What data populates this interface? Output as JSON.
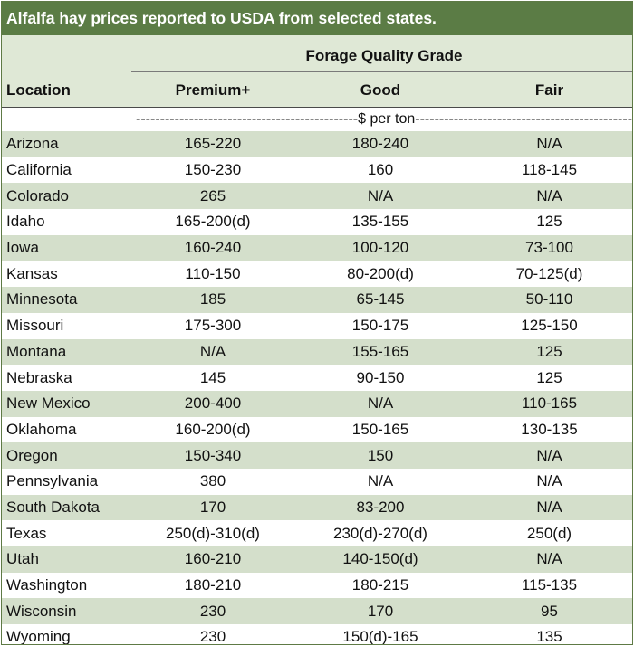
{
  "title": "Alfalfa hay prices reported to USDA from selected states.",
  "header": {
    "group": "Forage Quality Grade",
    "location": "Location",
    "premium": "Premium+",
    "good": "Good",
    "fair": "Fair"
  },
  "unit_row": "----------------------------------------------$ per ton----------------------------------------------",
  "rows": [
    {
      "location": "Arizona",
      "premium": "165-220",
      "good": "180-240",
      "fair": "N/A"
    },
    {
      "location": "California",
      "premium": "150-230",
      "good": "160",
      "fair": "118-145"
    },
    {
      "location": "Colorado",
      "premium": "265",
      "good": "N/A",
      "fair": "N/A"
    },
    {
      "location": "Idaho",
      "premium": "165-200(d)",
      "good": "135-155",
      "fair": "125"
    },
    {
      "location": "Iowa",
      "premium": "160-240",
      "good": "100-120",
      "fair": "73-100"
    },
    {
      "location": "Kansas",
      "premium": "110-150",
      "good": "80-200(d)",
      "fair": "70-125(d)"
    },
    {
      "location": "Minnesota",
      "premium": "185",
      "good": "65-145",
      "fair": "50-110"
    },
    {
      "location": "Missouri",
      "premium": "175-300",
      "good": "150-175",
      "fair": "125-150"
    },
    {
      "location": "Montana",
      "premium": "N/A",
      "good": "155-165",
      "fair": "125"
    },
    {
      "location": "Nebraska",
      "premium": "145",
      "good": "90-150",
      "fair": "125"
    },
    {
      "location": "New Mexico",
      "premium": "200-400",
      "good": "N/A",
      "fair": "110-165"
    },
    {
      "location": "Oklahoma",
      "premium": "160-200(d)",
      "good": "150-165",
      "fair": "130-135"
    },
    {
      "location": "Oregon",
      "premium": "150-340",
      "good": "150",
      "fair": "N/A"
    },
    {
      "location": "Pennsylvania",
      "premium": "380",
      "good": "N/A",
      "fair": "N/A"
    },
    {
      "location": "South Dakota",
      "premium": "170",
      "good": "83-200",
      "fair": "N/A"
    },
    {
      "location": "Texas",
      "premium": "250(d)-310(d)",
      "good": "230(d)-270(d)",
      "fair": "250(d)"
    },
    {
      "location": "Utah",
      "premium": "160-210",
      "good": "140-150(d)",
      "fair": "N/A"
    },
    {
      "location": "Washington",
      "premium": "180-210",
      "good": "180-215",
      "fair": "115-135"
    },
    {
      "location": "Wisconsin",
      "premium": "230",
      "good": "170",
      "fair": "95"
    },
    {
      "location": "Wyoming",
      "premium": "230",
      "good": "150(d)-165",
      "fair": "135"
    }
  ]
}
